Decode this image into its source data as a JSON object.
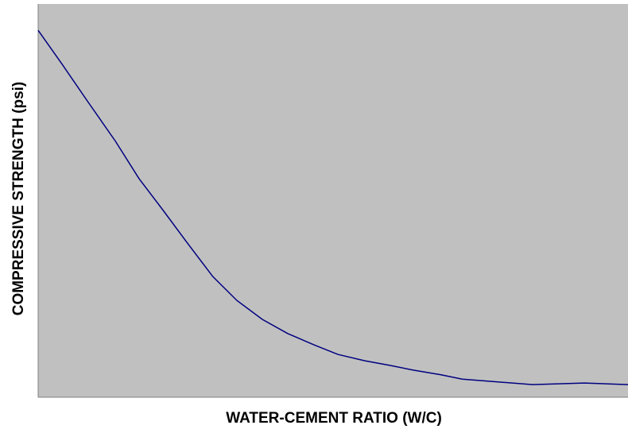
{
  "chart_data": {
    "type": "line",
    "xlabel": "WATER-CEMENT RATIO (W/C)",
    "ylabel": "COMPRESSIVE STRENGTH (psi)",
    "x": [
      0,
      4.0,
      8.4,
      13.1,
      17.1,
      21.2,
      25.2,
      29.6,
      33.7,
      38.0,
      42.3,
      46.8,
      50.8,
      55.3,
      59.6,
      63.6,
      68.3,
      71.9,
      77.1,
      83.8,
      92.6,
      100
    ],
    "series": [
      {
        "color": "#000080",
        "values": [
          93.3,
          84.8,
          75.2,
          65.1,
          55.6,
          47.5,
          39.4,
          30.7,
          24.6,
          19.8,
          16.2,
          13.3,
          10.9,
          9.3,
          8.1,
          6.9,
          5.7,
          4.6,
          4.0,
          3.2,
          3.6,
          3.2
        ]
      }
    ],
    "xlim": [
      0,
      100
    ],
    "ylim": [
      0,
      100
    ],
    "grid": false
  }
}
